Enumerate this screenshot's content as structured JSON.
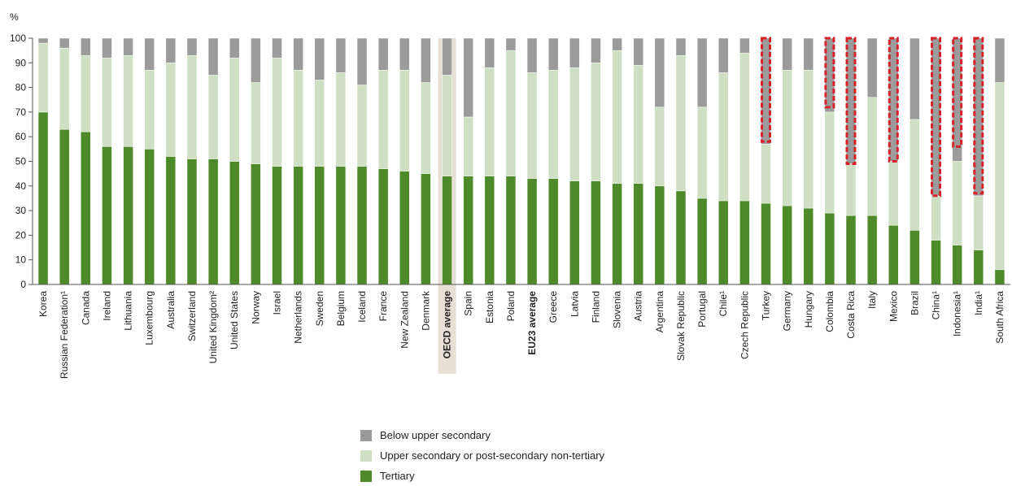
{
  "chart_data": {
    "type": "bar",
    "stacked": true,
    "ylabel": "%",
    "ylim": [
      0,
      100
    ],
    "yticks": [
      0,
      10,
      20,
      30,
      40,
      50,
      60,
      70,
      80,
      90,
      100
    ],
    "grid": false,
    "legend_position": "bottom",
    "categories": [
      "Korea",
      "Russian Federation¹",
      "Canada",
      "Ireland",
      "Lithuania",
      "Luxembourg",
      "Australia",
      "Switzerland",
      "United Kingdom²",
      "United States",
      "Norway",
      "Israel",
      "Netherlands",
      "Sweden",
      "Belgium",
      "Iceland",
      "France",
      "New Zealand",
      "Denmark",
      "OECD average",
      "Spain",
      "Estonia",
      "Poland",
      "EU23 average",
      "Greece",
      "Latvia",
      "Finland",
      "Slovenia",
      "Austria",
      "Argentina",
      "Slovak Republic",
      "Portugal",
      "Chile¹",
      "Czech Republic",
      "Turkey",
      "Germany",
      "Hungary",
      "Colombia",
      "Costa Rica",
      "Italy",
      "Mexico",
      "Brazil",
      "China¹",
      "Indonesia¹",
      "India¹",
      "South Africa"
    ],
    "highlighted_categories": [
      "OECD average",
      "EU23 average"
    ],
    "shaded_category": "OECD average",
    "series": [
      {
        "name": "Tertiary",
        "color": "#4e8a2a",
        "values": [
          70,
          63,
          62,
          56,
          56,
          55,
          52,
          51,
          51,
          50,
          49,
          48,
          48,
          48,
          48,
          48,
          47,
          46,
          45,
          44,
          44,
          44,
          44,
          43,
          43,
          42,
          42,
          41,
          41,
          40,
          38,
          35,
          34,
          34,
          33,
          32,
          31,
          29,
          28,
          28,
          24,
          22,
          18,
          16,
          14,
          6
        ]
      },
      {
        "name": "Upper secondary or post-secondary non-tertiary",
        "color": "#cfdfc3",
        "values": [
          28,
          33,
          31,
          36,
          37,
          32,
          38,
          42,
          34,
          42,
          33,
          44,
          39,
          35,
          38,
          33,
          40,
          41,
          37,
          41,
          24,
          44,
          51,
          43,
          44,
          46,
          48,
          54,
          48,
          32,
          55,
          37,
          52,
          60,
          24,
          55,
          56,
          41,
          21,
          48,
          26,
          45,
          18,
          34,
          22,
          76
        ]
      },
      {
        "name": "Below upper secondary",
        "color": "#9b9b9b",
        "values": [
          2,
          4,
          7,
          8,
          7,
          13,
          10,
          7,
          15,
          8,
          18,
          8,
          13,
          17,
          14,
          19,
          13,
          13,
          18,
          15,
          32,
          12,
          5,
          14,
          13,
          12,
          10,
          5,
          11,
          28,
          7,
          28,
          14,
          6,
          43,
          13,
          13,
          30,
          51,
          24,
          50,
          33,
          64,
          50,
          64,
          18
        ]
      }
    ],
    "partial_data_categories": [
      "Turkey",
      "Colombia",
      "Costa Rica",
      "Mexico",
      "China¹",
      "Indonesia¹",
      "India¹"
    ],
    "partial_data_color": "#d8222a",
    "partial_data_from": [
      58,
      72,
      49,
      50,
      36,
      56,
      37
    ],
    "legend": [
      "Below upper secondary",
      "Upper secondary or post-secondary non-tertiary",
      "Tertiary"
    ]
  }
}
